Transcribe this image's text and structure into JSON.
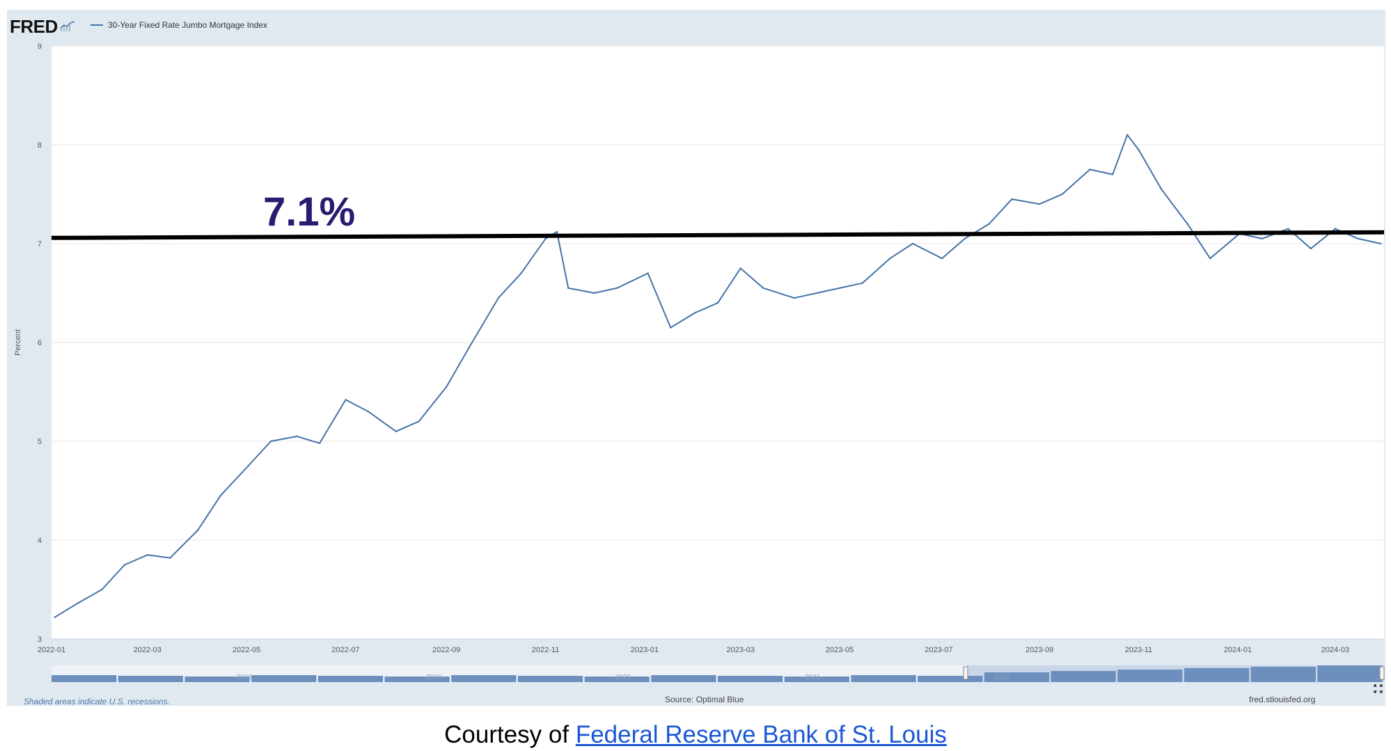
{
  "header": {
    "logo_text": "FRED",
    "legend_label": "30-Year Fixed Rate Jumbo Mortgage Index"
  },
  "annotation": {
    "label": "7.1%",
    "value": 7.1
  },
  "footer": {
    "recession_note": "Shaded areas indicate U.S. recessions.",
    "source": "Source: Optimal Blue",
    "site": "fred.stlouisfed.org"
  },
  "navigator": {
    "year_labels": [
      "2018",
      "2019",
      "2020",
      "2021",
      "2022"
    ]
  },
  "courtesy": {
    "prefix": "Courtesy of ",
    "link_text": "Federal Reserve Bank of St. Louis"
  },
  "colors": {
    "series": "#4572a7",
    "annotation_line": "#000000",
    "annotation_text": "#2b1a70",
    "frame": "#e1e9f0",
    "link": "#1a57d6"
  },
  "chart_data": {
    "type": "line",
    "ylabel": "Percent",
    "ylim": [
      3,
      9
    ],
    "y_ticks": [
      3,
      4,
      5,
      6,
      7,
      8,
      9
    ],
    "x_tick_labels": [
      "2022-01",
      "2022-03",
      "2022-05",
      "2022-07",
      "2022-09",
      "2022-11",
      "2023-01",
      "2023-03",
      "2023-05",
      "2023-07",
      "2023-09",
      "2023-11",
      "2024-01",
      "2024-03"
    ],
    "grid": true,
    "legend_position": "top-left",
    "series": [
      {
        "name": "30-Year Fixed Rate Jumbo Mortgage Index",
        "x": [
          "2022-01-03",
          "2022-01-17",
          "2022-02-01",
          "2022-02-15",
          "2022-03-01",
          "2022-03-15",
          "2022-04-01",
          "2022-04-15",
          "2022-05-02",
          "2022-05-16",
          "2022-06-01",
          "2022-06-15",
          "2022-07-01",
          "2022-07-15",
          "2022-08-01",
          "2022-08-15",
          "2022-09-01",
          "2022-09-15",
          "2022-10-03",
          "2022-10-17",
          "2022-11-01",
          "2022-11-08",
          "2022-11-15",
          "2022-12-01",
          "2022-12-15",
          "2023-01-03",
          "2023-01-17",
          "2023-02-01",
          "2023-02-15",
          "2023-03-01",
          "2023-03-15",
          "2023-04-03",
          "2023-04-17",
          "2023-05-01",
          "2023-05-15",
          "2023-06-01",
          "2023-06-15",
          "2023-07-03",
          "2023-07-17",
          "2023-08-01",
          "2023-08-15",
          "2023-09-01",
          "2023-09-15",
          "2023-10-02",
          "2023-10-16",
          "2023-10-25",
          "2023-11-01",
          "2023-11-15",
          "2023-12-01",
          "2023-12-15",
          "2024-01-02",
          "2024-01-16",
          "2024-02-01",
          "2024-02-15",
          "2024-03-01",
          "2024-03-15",
          "2024-03-29"
        ],
        "values": [
          3.22,
          3.36,
          3.5,
          3.75,
          3.85,
          3.82,
          4.1,
          4.45,
          4.75,
          5.0,
          5.05,
          4.98,
          5.42,
          5.3,
          5.1,
          5.2,
          5.55,
          5.95,
          6.45,
          6.7,
          7.05,
          7.12,
          6.55,
          6.5,
          6.55,
          6.7,
          6.15,
          6.3,
          6.4,
          6.75,
          6.55,
          6.45,
          6.5,
          6.55,
          6.6,
          6.85,
          7.0,
          6.85,
          7.05,
          7.2,
          7.45,
          7.4,
          7.5,
          7.75,
          7.7,
          8.1,
          7.95,
          7.55,
          7.2,
          6.85,
          7.1,
          7.05,
          7.15,
          6.95,
          7.15,
          7.05,
          7.0
        ]
      }
    ]
  }
}
